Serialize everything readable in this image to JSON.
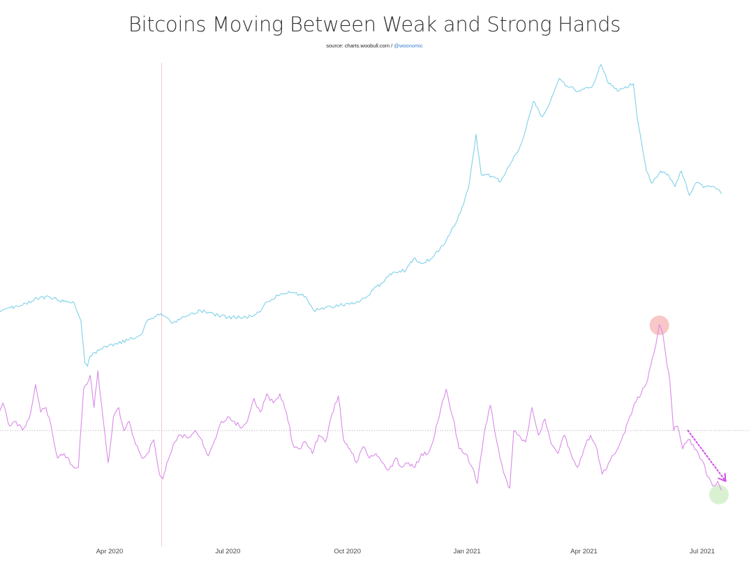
{
  "title": "Bitcoins Moving Between Weak and Strong Hands",
  "source": {
    "prefix": "source: charts.woobull.com / ",
    "handle": "@woonomic"
  },
  "colors": {
    "price": "#7fd0e8",
    "ratio": "#d98ae8",
    "baseline": "#aaaaaa",
    "marker_line": "#f4c6cf",
    "peak_highlight": "#f7b9b9",
    "low_highlight": "#cfeec5",
    "arrow": "#d14be6"
  },
  "chart_data": {
    "type": "line",
    "title": "Bitcoins Moving Between Weak and Strong Hands",
    "x_axis": {
      "ticks": [
        "Apr 2020",
        "Jul 2020",
        "Oct 2020",
        "Jan 2021",
        "Apr 2021",
        "Jul 2021"
      ],
      "range": [
        "2020-01-01",
        "2021-07-20"
      ]
    },
    "y_scale": "relative (no printed y-axis)",
    "grid": false,
    "legend": "none",
    "marker_date": "2020-05-11",
    "series": [
      {
        "values_relative": [
          [
            "2020-01-01",
            0.3
          ],
          [
            "2020-01-12",
            0.33
          ],
          [
            "2020-01-25",
            0.35
          ],
          [
            "2020-02-05",
            0.39
          ],
          [
            "2020-02-14",
            0.4
          ],
          [
            "2020-02-26",
            0.37
          ],
          [
            "2020-03-05",
            0.36
          ],
          [
            "2020-03-10",
            0.26
          ],
          [
            "2020-03-13",
            0.02
          ],
          [
            "2020-03-15",
            0.0
          ],
          [
            "2020-03-17",
            0.06
          ],
          [
            "2020-03-25",
            0.1
          ],
          [
            "2020-04-05",
            0.13
          ],
          [
            "2020-04-15",
            0.15
          ],
          [
            "2020-04-25",
            0.18
          ],
          [
            "2020-04-30",
            0.26
          ],
          [
            "2020-05-08",
            0.3
          ],
          [
            "2020-05-12",
            0.29
          ],
          [
            "2020-05-20",
            0.25
          ],
          [
            "2020-05-31",
            0.29
          ],
          [
            "2020-06-10",
            0.32
          ],
          [
            "2020-06-20",
            0.3
          ],
          [
            "2020-07-01",
            0.28
          ],
          [
            "2020-07-15",
            0.28
          ],
          [
            "2020-07-25",
            0.31
          ],
          [
            "2020-07-31",
            0.37
          ],
          [
            "2020-08-10",
            0.41
          ],
          [
            "2020-08-17",
            0.43
          ],
          [
            "2020-08-30",
            0.4
          ],
          [
            "2020-09-05",
            0.32
          ],
          [
            "2020-09-15",
            0.34
          ],
          [
            "2020-09-25",
            0.35
          ],
          [
            "2020-10-08",
            0.37
          ],
          [
            "2020-10-15",
            0.39
          ],
          [
            "2020-10-21",
            0.44
          ],
          [
            "2020-10-28",
            0.48
          ],
          [
            "2020-11-05",
            0.54
          ],
          [
            "2020-11-15",
            0.55
          ],
          [
            "2020-11-21",
            0.62
          ],
          [
            "2020-11-28",
            0.59
          ],
          [
            "2020-12-05",
            0.62
          ],
          [
            "2020-12-16",
            0.72
          ],
          [
            "2020-12-27",
            0.88
          ],
          [
            "2021-01-02",
            1.02
          ],
          [
            "2021-01-08",
            1.33
          ],
          [
            "2021-01-12",
            1.1
          ],
          [
            "2021-01-20",
            1.09
          ],
          [
            "2021-01-27",
            1.06
          ],
          [
            "2021-02-05",
            1.18
          ],
          [
            "2021-02-12",
            1.28
          ],
          [
            "2021-02-21",
            1.52
          ],
          [
            "2021-02-28",
            1.43
          ],
          [
            "2021-03-05",
            1.5
          ],
          [
            "2021-03-13",
            1.65
          ],
          [
            "2021-03-20",
            1.6
          ],
          [
            "2021-03-28",
            1.58
          ],
          [
            "2021-04-07",
            1.6
          ],
          [
            "2021-04-14",
            1.73
          ],
          [
            "2021-04-20",
            1.62
          ],
          [
            "2021-04-28",
            1.58
          ],
          [
            "2021-05-09",
            1.62
          ],
          [
            "2021-05-12",
            1.42
          ],
          [
            "2021-05-19",
            1.12
          ],
          [
            "2021-05-23",
            1.05
          ],
          [
            "2021-05-30",
            1.12
          ],
          [
            "2021-06-05",
            1.1
          ],
          [
            "2021-06-10",
            1.03
          ],
          [
            "2021-06-15",
            1.12
          ],
          [
            "2021-06-21",
            0.98
          ],
          [
            "2021-06-26",
            1.05
          ],
          [
            "2021-07-03",
            1.03
          ],
          [
            "2021-07-10",
            1.03
          ],
          [
            "2021-07-16",
            0.99
          ]
        ]
      },
      {
        "values_relative": [
          [
            "2020-01-01",
            0.1
          ],
          [
            "2020-01-06",
            0.06
          ],
          [
            "2020-01-10",
            0.12
          ],
          [
            "2020-01-15",
            0.02
          ],
          [
            "2020-01-20",
            0.04
          ],
          [
            "2020-01-25",
            0.0
          ],
          [
            "2020-01-30",
            0.05
          ],
          [
            "2020-02-04",
            0.2
          ],
          [
            "2020-02-08",
            0.08
          ],
          [
            "2020-02-12",
            0.1
          ],
          [
            "2020-02-16",
            0.02
          ],
          [
            "2020-02-21",
            -0.12
          ],
          [
            "2020-02-26",
            -0.1
          ],
          [
            "2020-03-03",
            -0.15
          ],
          [
            "2020-03-08",
            -0.16
          ],
          [
            "2020-03-12",
            0.18
          ],
          [
            "2020-03-17",
            0.24
          ],
          [
            "2020-03-20",
            0.1
          ],
          [
            "2020-03-23",
            0.26
          ],
          [
            "2020-03-27",
            0.05
          ],
          [
            "2020-03-31",
            -0.14
          ],
          [
            "2020-04-04",
            0.06
          ],
          [
            "2020-04-08",
            0.1
          ],
          [
            "2020-04-12",
            0.0
          ],
          [
            "2020-04-16",
            0.04
          ],
          [
            "2020-04-21",
            -0.06
          ],
          [
            "2020-04-26",
            -0.12
          ],
          [
            "2020-04-30",
            -0.1
          ],
          [
            "2020-05-05",
            -0.04
          ],
          [
            "2020-05-09",
            -0.18
          ],
          [
            "2020-05-12",
            -0.21
          ],
          [
            "2020-05-15",
            -0.14
          ],
          [
            "2020-05-20",
            -0.06
          ],
          [
            "2020-05-26",
            -0.02
          ],
          [
            "2020-06-01",
            -0.03
          ],
          [
            "2020-06-06",
            0.0
          ],
          [
            "2020-06-11",
            -0.04
          ],
          [
            "2020-06-16",
            -0.11
          ],
          [
            "2020-06-21",
            -0.04
          ],
          [
            "2020-06-26",
            0.04
          ],
          [
            "2020-07-01",
            0.06
          ],
          [
            "2020-07-06",
            0.04
          ],
          [
            "2020-07-11",
            0.01
          ],
          [
            "2020-07-16",
            0.04
          ],
          [
            "2020-07-21",
            0.14
          ],
          [
            "2020-07-26",
            0.08
          ],
          [
            "2020-07-31",
            0.16
          ],
          [
            "2020-08-05",
            0.12
          ],
          [
            "2020-08-10",
            0.16
          ],
          [
            "2020-08-15",
            0.08
          ],
          [
            "2020-08-20",
            -0.06
          ],
          [
            "2020-08-25",
            -0.08
          ],
          [
            "2020-08-30",
            -0.05
          ],
          [
            "2020-09-04",
            -0.1
          ],
          [
            "2020-09-09",
            -0.02
          ],
          [
            "2020-09-14",
            -0.05
          ],
          [
            "2020-09-19",
            0.07
          ],
          [
            "2020-09-24",
            0.15
          ],
          [
            "2020-09-28",
            -0.04
          ],
          [
            "2020-10-03",
            -0.08
          ],
          [
            "2020-10-08",
            -0.14
          ],
          [
            "2020-10-13",
            -0.07
          ],
          [
            "2020-10-18",
            -0.12
          ],
          [
            "2020-10-23",
            -0.1
          ],
          [
            "2020-10-28",
            -0.14
          ],
          [
            "2020-11-02",
            -0.17
          ],
          [
            "2020-11-07",
            -0.12
          ],
          [
            "2020-11-12",
            -0.16
          ],
          [
            "2020-11-17",
            -0.14
          ],
          [
            "2020-11-22",
            -0.16
          ],
          [
            "2020-11-27",
            -0.1
          ],
          [
            "2020-12-02",
            -0.1
          ],
          [
            "2020-12-07",
            -0.02
          ],
          [
            "2020-12-12",
            0.1
          ],
          [
            "2020-12-16",
            0.18
          ],
          [
            "2020-12-21",
            0.06
          ],
          [
            "2020-12-26",
            -0.08
          ],
          [
            "2020-12-31",
            -0.1
          ],
          [
            "2021-01-05",
            -0.16
          ],
          [
            "2021-01-09",
            -0.23
          ],
          [
            "2021-01-14",
            -0.02
          ],
          [
            "2021-01-19",
            0.11
          ],
          [
            "2021-01-24",
            -0.05
          ],
          [
            "2021-01-29",
            -0.18
          ],
          [
            "2021-02-03",
            -0.25
          ],
          [
            "2021-02-06",
            0.0
          ],
          [
            "2021-02-10",
            -0.02
          ],
          [
            "2021-02-15",
            -0.05
          ],
          [
            "2021-02-20",
            0.1
          ],
          [
            "2021-02-25",
            -0.02
          ],
          [
            "2021-03-02",
            0.05
          ],
          [
            "2021-03-07",
            -0.06
          ],
          [
            "2021-03-12",
            -0.1
          ],
          [
            "2021-03-17",
            -0.02
          ],
          [
            "2021-03-22",
            -0.1
          ],
          [
            "2021-03-27",
            -0.16
          ],
          [
            "2021-04-01",
            -0.08
          ],
          [
            "2021-04-06",
            -0.02
          ],
          [
            "2021-04-11",
            -0.08
          ],
          [
            "2021-04-15",
            -0.19
          ],
          [
            "2021-04-20",
            -0.14
          ],
          [
            "2021-04-25",
            -0.1
          ],
          [
            "2021-04-30",
            -0.04
          ],
          [
            "2021-05-05",
            0.04
          ],
          [
            "2021-05-10",
            0.12
          ],
          [
            "2021-05-15",
            0.16
          ],
          [
            "2021-05-20",
            0.22
          ],
          [
            "2021-05-25",
            0.34
          ],
          [
            "2021-05-29",
            0.46
          ],
          [
            "2021-06-01",
            0.41
          ],
          [
            "2021-06-04",
            0.28
          ],
          [
            "2021-06-06",
            0.22
          ],
          [
            "2021-06-09",
            0.0
          ],
          [
            "2021-06-12",
            0.02
          ],
          [
            "2021-06-16",
            -0.08
          ],
          [
            "2021-06-20",
            -0.04
          ],
          [
            "2021-06-24",
            -0.06
          ],
          [
            "2021-06-28",
            -0.1
          ],
          [
            "2021-07-02",
            -0.14
          ],
          [
            "2021-07-05",
            -0.2
          ],
          [
            "2021-07-09",
            -0.24
          ],
          [
            "2021-07-13",
            -0.22
          ],
          [
            "2021-07-16",
            -0.26
          ]
        ]
      }
    ],
    "annotations": [
      {
        "kind": "highlight-circle",
        "series": 1,
        "date": "2021-05-29",
        "value": 0.46
      },
      {
        "kind": "highlight-circle",
        "series": 1,
        "date": "2021-07-16",
        "value": -0.26
      },
      {
        "kind": "dotted-arrow",
        "from": [
          "2021-06-20",
          0.0
        ],
        "to": [
          "2021-07-19",
          -0.22
        ]
      }
    ]
  }
}
